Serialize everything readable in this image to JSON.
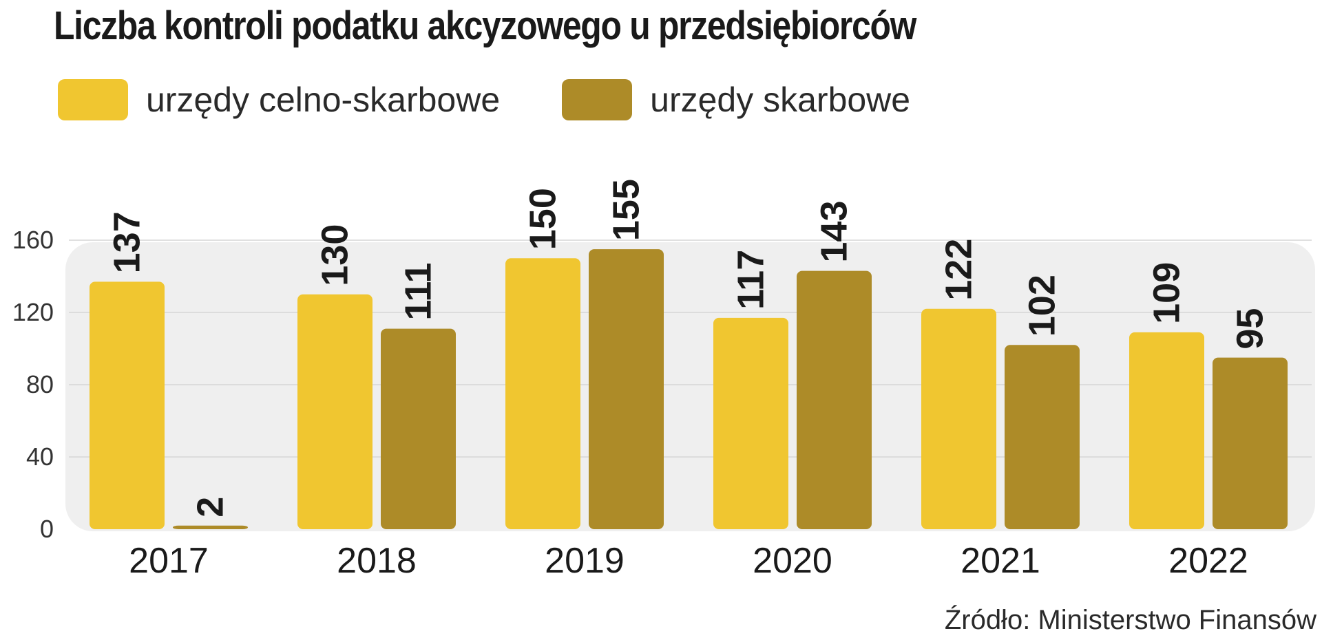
{
  "title": "Liczba kontroli podatku akcyzowego u przedsiębiorców",
  "source": "Źródło: Ministerstwo Finansów",
  "legend": [
    {
      "label": "urzędy celno-skarbowe",
      "color": "#f0c630"
    },
    {
      "label": "urzędy skarbowe",
      "color": "#ad8b28"
    }
  ],
  "chart_data": {
    "type": "bar",
    "title": "Liczba kontroli podatku akcyzowego u przedsiębiorców",
    "categories": [
      "2017",
      "2018",
      "2019",
      "2020",
      "2021",
      "2022"
    ],
    "series": [
      {
        "name": "urzędy celno-skarbowe",
        "color": "#f0c630",
        "values": [
          137,
          130,
          150,
          117,
          122,
          109
        ]
      },
      {
        "name": "urzędy skarbowe",
        "color": "#ad8b28",
        "values": [
          2,
          111,
          155,
          143,
          102,
          95
        ]
      }
    ],
    "yticks": [
      0,
      40,
      80,
      120,
      160
    ],
    "ylim": [
      0,
      160
    ],
    "xlabel": "",
    "ylabel": "",
    "grid": true,
    "legend_position": "top-left",
    "data_labels": true
  }
}
